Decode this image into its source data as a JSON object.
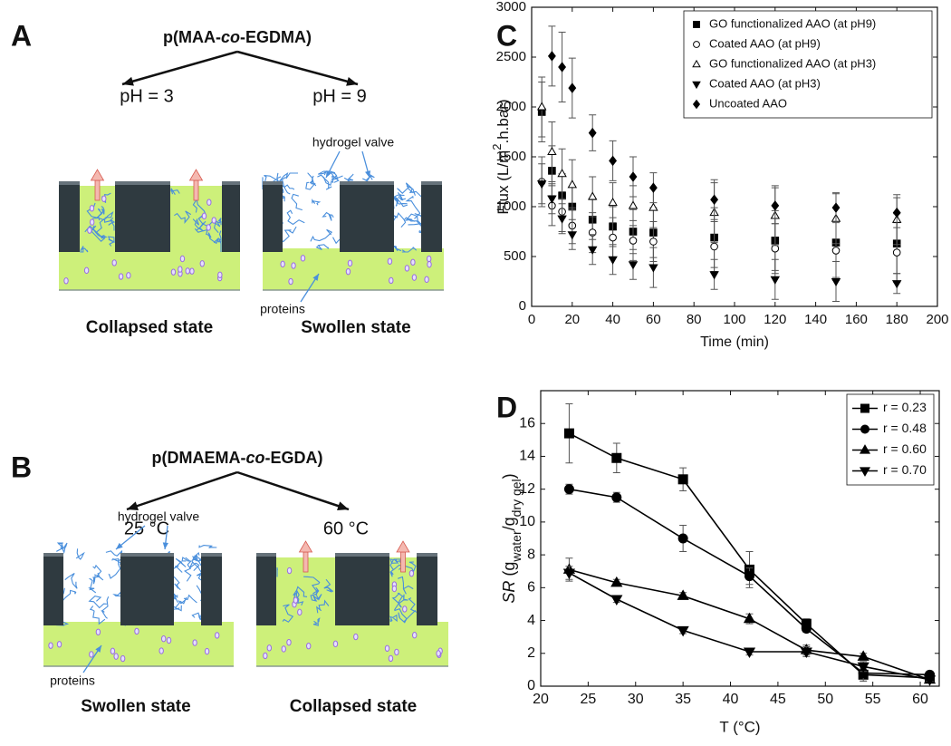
{
  "panels": [
    {
      "letter": "A",
      "title_parts": [
        "p(MAA-",
        "co",
        "-EGDMA)"
      ],
      "left_condition": "pH = 3",
      "right_condition": "pH = 9",
      "valve_label": "hydrogel valve",
      "protein_label": "proteins",
      "left_state": "Collapsed state",
      "right_state": "Swollen state"
    },
    {
      "letter": "B",
      "title_parts": [
        "p(DMAEMA-",
        "co",
        "-EGDA)"
      ],
      "left_condition": "25 °C",
      "right_condition": "60 °C",
      "valve_label": "hydrogel valve",
      "protein_label": "proteins",
      "left_state": "Swollen state",
      "right_state": "Collapsed state"
    }
  ],
  "chart_data": [
    {
      "type": "scatter",
      "letter": "C",
      "xlabel": "Time (min)",
      "ylabel_parts": [
        "Flux (L/m",
        "2",
        ".h.bar)"
      ],
      "x": [
        5,
        10,
        15,
        20,
        30,
        40,
        50,
        60,
        90,
        120,
        150,
        180
      ],
      "xlim": [
        0,
        200
      ],
      "xticks": [
        0,
        20,
        40,
        60,
        80,
        100,
        120,
        140,
        160,
        180,
        200
      ],
      "ylim": [
        0,
        3000
      ],
      "yticks": [
        0,
        500,
        1000,
        1500,
        2000,
        2500,
        3000
      ],
      "legend": "upper right",
      "series": [
        {
          "name": "GO functionalized AAO (at pH9)",
          "color": "#000000",
          "marker": "square",
          "values": [
            1950,
            1360,
            1110,
            1000,
            870,
            800,
            750,
            740,
            690,
            660,
            640,
            630
          ],
          "errors": [
            300,
            250,
            220,
            200,
            200,
            200,
            220,
            250,
            300,
            300,
            350,
            300
          ]
        },
        {
          "name": "Coated AAO (at pH9)",
          "color": "#000000",
          "marker": "circle-open",
          "values": [
            1250,
            1010,
            950,
            810,
            740,
            690,
            660,
            650,
            600,
            580,
            560,
            540
          ],
          "errors": [
            250,
            200,
            200,
            180,
            200,
            200,
            200,
            200,
            250,
            250,
            300,
            300
          ]
        },
        {
          "name": "GO functionalized AAO (at pH3)",
          "color": "#000000",
          "marker": "triangle-open",
          "values": [
            2000,
            1550,
            1330,
            1220,
            1100,
            1040,
            1010,
            990,
            940,
            910,
            880,
            870
          ],
          "errors": [
            300,
            300,
            250,
            250,
            200,
            200,
            200,
            200,
            300,
            300,
            250,
            250
          ]
        },
        {
          "name": "Coated AAO (at pH3)",
          "color": "#000000",
          "marker": "triangle-down",
          "values": [
            1230,
            1080,
            880,
            720,
            570,
            470,
            420,
            390,
            320,
            270,
            250,
            230
          ],
          "errors": [
            200,
            150,
            150,
            150,
            150,
            150,
            150,
            200,
            150,
            200,
            200,
            100
          ]
        },
        {
          "name": "Uncoated AAO",
          "color": "#000000",
          "marker": "diamond",
          "values": [
            null,
            2510,
            2400,
            2190,
            1740,
            1460,
            1300,
            1190,
            1070,
            1010,
            990,
            940
          ],
          "errors": [
            null,
            300,
            350,
            300,
            180,
            200,
            200,
            150,
            200,
            180,
            150,
            150
          ]
        }
      ]
    },
    {
      "type": "line",
      "letter": "D",
      "xlabel": "T (°C)",
      "ylabel_parts": [
        "SR",
        " (g",
        "water",
        "/g",
        "dry gel",
        ")"
      ],
      "x": [
        23,
        28,
        35,
        42,
        48,
        54,
        61
      ],
      "xlim": [
        20,
        62
      ],
      "xticks": [
        20,
        25,
        30,
        35,
        40,
        45,
        50,
        55,
        60
      ],
      "ylim": [
        0,
        18
      ],
      "yticks": [
        0,
        2,
        4,
        6,
        8,
        10,
        12,
        14,
        16
      ],
      "legend": "upper right",
      "series": [
        {
          "name": "r = 0.23",
          "color": "#000000",
          "marker": "square",
          "values": [
            15.4,
            13.9,
            12.6,
            7.1,
            3.8,
            0.7,
            0.5
          ],
          "errors": [
            1.8,
            0.9,
            0.7,
            1.1,
            0.3,
            0.4,
            0.2
          ]
        },
        {
          "name": "r = 0.48",
          "color": "#000000",
          "marker": "circle",
          "values": [
            12.0,
            11.5,
            9.0,
            6.7,
            3.5,
            0.8,
            0.7
          ],
          "errors": [
            0.3,
            0.3,
            0.8,
            0.5,
            0.2,
            0.4,
            0.2
          ]
        },
        {
          "name": "r = 0.60",
          "color": "#000000",
          "marker": "triangle",
          "values": [
            7.1,
            6.3,
            5.5,
            4.1,
            2.2,
            1.8,
            0.4
          ],
          "errors": [
            0.7,
            0.2,
            0.2,
            0.3,
            0.3,
            0.2,
            0.1
          ]
        },
        {
          "name": "r = 0.70",
          "color": "#000000",
          "marker": "triangle-down",
          "values": [
            6.9,
            5.3,
            3.4,
            2.1,
            2.1,
            1.2,
            0.4
          ],
          "errors": [
            0.4,
            0.2,
            0.2,
            0.2,
            0.3,
            0.3,
            0.1
          ]
        }
      ]
    }
  ]
}
